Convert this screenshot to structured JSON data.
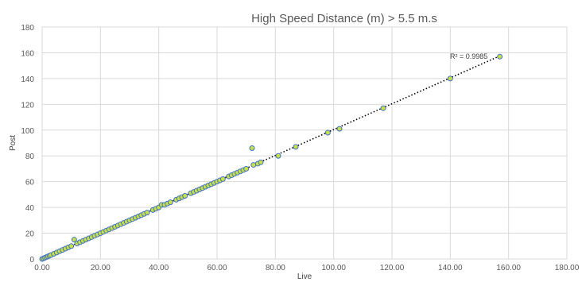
{
  "chart_data": {
    "type": "scatter",
    "title": "High Speed Distance (m) > 5.5 m.s",
    "xlabel": "Live",
    "ylabel": "Post",
    "xlim": [
      0,
      180
    ],
    "ylim": [
      0,
      180
    ],
    "x_ticks": [
      "0.00",
      "20.00",
      "40.00",
      "60.00",
      "80.00",
      "100.00",
      "120.00",
      "140.00",
      "160.00",
      "180.00"
    ],
    "y_ticks": [
      "0",
      "20",
      "40",
      "60",
      "80",
      "100",
      "120",
      "140",
      "160",
      "180"
    ],
    "grid": true,
    "trendline": {
      "type": "linear",
      "style": "dotted",
      "x_range": [
        0,
        157
      ],
      "r_squared_label": "R² = 0.9985"
    },
    "colors": {
      "marker_fill": "#c6e04a",
      "marker_stroke": "#4472c4",
      "trendline": "#000000"
    },
    "points": [
      [
        0,
        0
      ],
      [
        0.5,
        0.5
      ],
      [
        1,
        1
      ],
      [
        1.5,
        1.5
      ],
      [
        2,
        2
      ],
      [
        2.5,
        2.5
      ],
      [
        3,
        3
      ],
      [
        4,
        4
      ],
      [
        5,
        5
      ],
      [
        6,
        6
      ],
      [
        7,
        7
      ],
      [
        8,
        8
      ],
      [
        9,
        9
      ],
      [
        10,
        10
      ],
      [
        11,
        15
      ],
      [
        12,
        12
      ],
      [
        13,
        13
      ],
      [
        14,
        14
      ],
      [
        15,
        15
      ],
      [
        16,
        16
      ],
      [
        17,
        17
      ],
      [
        18,
        18
      ],
      [
        19,
        19
      ],
      [
        20,
        20
      ],
      [
        21,
        21
      ],
      [
        22,
        22
      ],
      [
        23,
        23
      ],
      [
        24,
        24
      ],
      [
        25,
        25
      ],
      [
        26,
        26
      ],
      [
        27,
        27
      ],
      [
        28,
        28
      ],
      [
        29,
        29
      ],
      [
        30,
        30
      ],
      [
        31,
        31
      ],
      [
        32,
        32
      ],
      [
        33,
        33
      ],
      [
        34,
        34
      ],
      [
        35,
        35
      ],
      [
        36,
        36
      ],
      [
        38,
        38
      ],
      [
        39,
        39
      ],
      [
        40,
        40
      ],
      [
        41,
        42
      ],
      [
        42,
        42
      ],
      [
        43,
        43
      ],
      [
        44,
        44
      ],
      [
        46,
        46
      ],
      [
        47,
        47
      ],
      [
        48,
        48
      ],
      [
        49,
        49
      ],
      [
        51,
        51
      ],
      [
        52,
        52
      ],
      [
        53,
        53
      ],
      [
        54,
        54
      ],
      [
        55,
        55
      ],
      [
        56,
        56
      ],
      [
        57,
        57
      ],
      [
        58,
        58
      ],
      [
        59,
        59
      ],
      [
        60,
        60
      ],
      [
        61,
        61
      ],
      [
        62,
        62
      ],
      [
        64,
        64
      ],
      [
        65,
        65
      ],
      [
        66,
        66
      ],
      [
        67,
        67
      ],
      [
        68,
        68
      ],
      [
        69,
        69
      ],
      [
        70,
        70
      ],
      [
        72,
        86
      ],
      [
        72.5,
        73
      ],
      [
        74,
        74
      ],
      [
        75,
        75
      ],
      [
        81,
        80
      ],
      [
        87,
        87
      ],
      [
        98,
        98
      ],
      [
        102,
        101
      ],
      [
        117,
        117
      ],
      [
        140,
        140
      ],
      [
        157,
        157
      ]
    ]
  }
}
